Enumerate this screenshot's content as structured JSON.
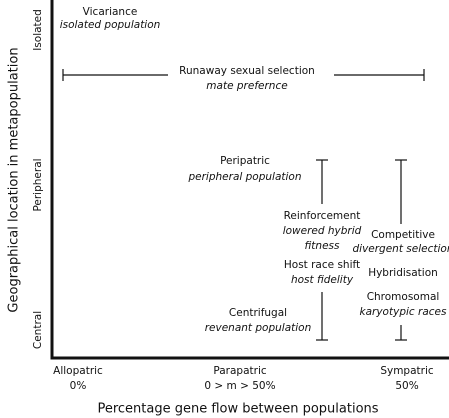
{
  "y_axis": {
    "title": "Geographical location in metapopulation",
    "labels": [
      "Isolated",
      "Peripheral",
      "Central"
    ]
  },
  "x_axis": {
    "title": "Percentage gene flow between populations",
    "labels": [
      {
        "name": "Allopatric",
        "flow": "0%"
      },
      {
        "name": "Parapatric",
        "flow": "0 > m > 50%"
      },
      {
        "name": "Sympatric",
        "flow": "50%"
      }
    ]
  },
  "nodes": [
    {
      "label": "Vicariance",
      "detail": [
        "isolated population"
      ]
    },
    {
      "label": "Runaway sexual selection",
      "detail": [
        "mate prefernce"
      ]
    },
    {
      "label": "Peripatric",
      "detail": [
        "peripheral population"
      ]
    },
    {
      "label": "Reinforcement",
      "detail": [
        "lowered hybrid",
        "fitness"
      ]
    },
    {
      "label": "Host race shift",
      "detail": [
        "host fidelity"
      ]
    },
    {
      "label": "Centrifugal",
      "detail": [
        "revenant population"
      ]
    },
    {
      "label": "Competitive",
      "detail": [
        "divergent selection"
      ]
    },
    {
      "label": "Hybridisation",
      "detail": []
    },
    {
      "label": "Chromosomal",
      "detail": [
        "karyotypic races"
      ]
    }
  ]
}
